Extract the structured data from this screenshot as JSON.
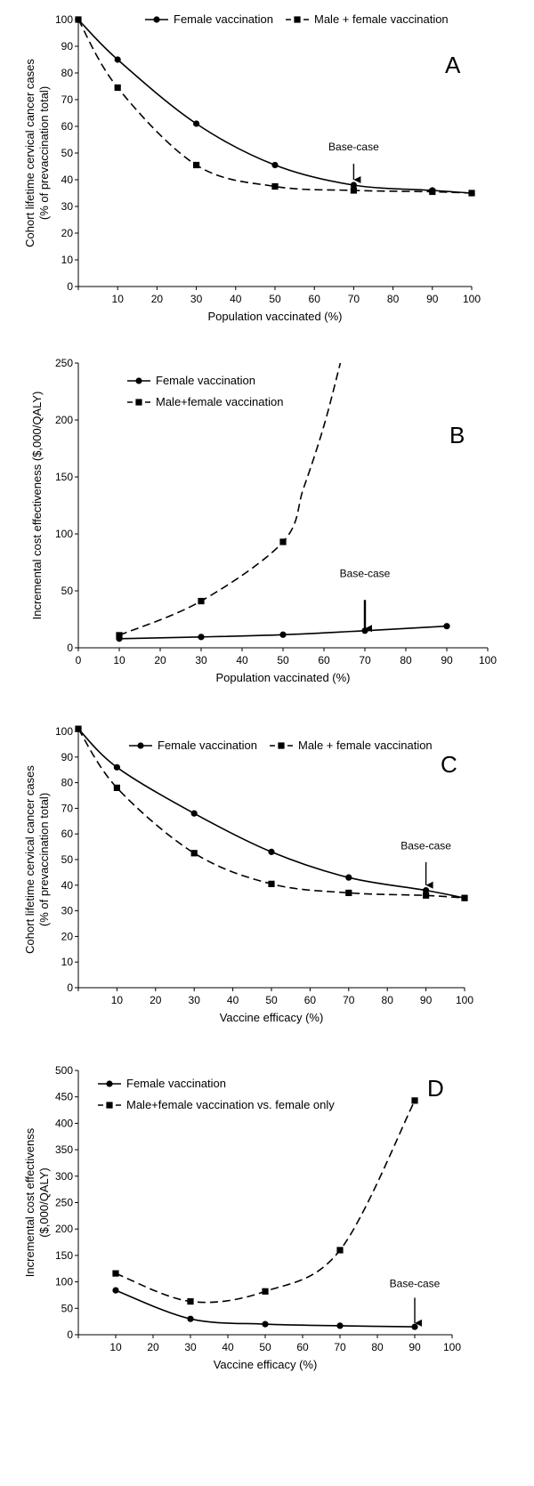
{
  "figure": {
    "background": "#ffffff",
    "line_color": "#000000"
  },
  "chart_data": [
    {
      "id": "A",
      "type": "line",
      "panel_label": "A",
      "xlabel": "Population vaccinated (%)",
      "ylabel": [
        "Cohort lifetime cervical cancer cases",
        "(% of prevaccination total)"
      ],
      "xlim": [
        0,
        100
      ],
      "ylim": [
        0,
        100
      ],
      "xticks": [
        0,
        10,
        20,
        30,
        40,
        50,
        60,
        70,
        80,
        90,
        100
      ],
      "xtick_labels": [
        "",
        "10",
        "20",
        "30",
        "40",
        "50",
        "60",
        "70",
        "80",
        "90",
        "100"
      ],
      "yticks": [
        0,
        10,
        20,
        30,
        40,
        50,
        60,
        70,
        80,
        90,
        100
      ],
      "ytick_labels": [
        "0",
        "10",
        "20",
        "30",
        "40",
        "50",
        "60",
        "70",
        "80",
        "90",
        "100"
      ],
      "x_origin_label": "0",
      "legend": {
        "placement": "top",
        "layout": "horizontal"
      },
      "series": [
        {
          "name": "Female vaccination",
          "marker": "circle",
          "style": "solid",
          "x": [
            0,
            10,
            30,
            50,
            70,
            90,
            100
          ],
          "y": [
            100,
            85,
            61,
            45.5,
            38,
            36,
            35
          ]
        },
        {
          "name": "Male + female vaccination",
          "marker": "square",
          "style": "dashed",
          "x": [
            0,
            10,
            30,
            50,
            70,
            90,
            100
          ],
          "y": [
            100,
            74.5,
            45.5,
            37.5,
            36,
            35.5,
            35
          ]
        }
      ],
      "annotation": {
        "text": "Base-case",
        "x": 70,
        "y_arrow_tip": 40,
        "y_arrow_tail": 46,
        "y_text": 51
      }
    },
    {
      "id": "B",
      "type": "line",
      "panel_label": "B",
      "xlabel": "Population vaccinated (%)",
      "ylabel": [
        "Incremental cost effectiveness ($,000/QALY)"
      ],
      "xlim": [
        0,
        100
      ],
      "ylim": [
        0,
        250
      ],
      "xticks": [
        0,
        10,
        20,
        30,
        40,
        50,
        60,
        70,
        80,
        90,
        100
      ],
      "xtick_labels": [
        "0",
        "10",
        "20",
        "30",
        "40",
        "50",
        "60",
        "70",
        "80",
        "90",
        "100"
      ],
      "yticks": [
        0,
        50,
        100,
        150,
        200,
        250
      ],
      "ytick_labels": [
        "0",
        "50",
        "100",
        "150",
        "200",
        "250"
      ],
      "legend": {
        "placement": "top-left",
        "layout": "vertical"
      },
      "series": [
        {
          "name": "Female vaccination",
          "marker": "circle",
          "style": "solid",
          "x": [
            10,
            30,
            50,
            70,
            90
          ],
          "y": [
            8,
            9.5,
            11.5,
            15,
            19
          ]
        },
        {
          "name": "Male+female vaccination",
          "marker": "square",
          "style": "dashed",
          "x": [
            10,
            30,
            50
          ],
          "y": [
            11,
            41,
            93
          ],
          "curve_continuation": [
            [
              55,
              140
            ],
            [
              60,
              195
            ],
            [
              64,
              250
            ]
          ]
        }
      ],
      "annotation": {
        "text": "Base-case",
        "x": 70,
        "y_arrow_tip": 17,
        "y_arrow_tail": 42,
        "y_text": 62
      }
    },
    {
      "id": "C",
      "type": "line",
      "panel_label": "C",
      "xlabel": "Vaccine efficacy (%)",
      "ylabel": [
        "Cohort lifetime cervical cancer cases",
        "(% of prevaccination total)"
      ],
      "xlim": [
        0,
        100
      ],
      "ylim": [
        0,
        100
      ],
      "xticks": [
        0,
        10,
        20,
        30,
        40,
        50,
        60,
        70,
        80,
        90,
        100
      ],
      "xtick_labels": [
        "",
        "10",
        "20",
        "30",
        "40",
        "50",
        "60",
        "70",
        "80",
        "90",
        "100"
      ],
      "yticks": [
        0,
        10,
        20,
        30,
        40,
        50,
        60,
        70,
        80,
        90,
        100
      ],
      "ytick_labels": [
        "0",
        "10",
        "20",
        "30",
        "40",
        "50",
        "60",
        "70",
        "80",
        "90",
        "100"
      ],
      "legend": {
        "placement": "top",
        "layout": "horizontal"
      },
      "series": [
        {
          "name": "Female vaccination",
          "marker": "circle",
          "style": "solid",
          "x": [
            0,
            10,
            30,
            50,
            70,
            90,
            100
          ],
          "y": [
            101,
            86,
            68,
            53,
            43,
            38,
            35
          ]
        },
        {
          "name": "Male + female vaccination",
          "marker": "square",
          "style": "dashed",
          "x": [
            0,
            10,
            30,
            50,
            70,
            90,
            100
          ],
          "y": [
            101,
            78,
            52.5,
            40.5,
            37,
            36,
            35
          ]
        }
      ],
      "annotation": {
        "text": "Base-case",
        "x": 90,
        "y_arrow_tip": 40,
        "y_arrow_tail": 49,
        "y_text": 54
      }
    },
    {
      "id": "D",
      "type": "line",
      "panel_label": "D",
      "xlabel": "Vaccine efficacy (%)",
      "ylabel": [
        "Incremental cost effectivenss",
        "($,000/QALY)"
      ],
      "xlim": [
        0,
        100
      ],
      "ylim": [
        0,
        500
      ],
      "xticks": [
        0,
        10,
        20,
        30,
        40,
        50,
        60,
        70,
        80,
        90,
        100
      ],
      "xtick_labels": [
        "",
        "10",
        "20",
        "30",
        "40",
        "50",
        "60",
        "70",
        "80",
        "90",
        "100"
      ],
      "yticks": [
        0,
        50,
        100,
        150,
        200,
        250,
        300,
        350,
        400,
        450,
        500
      ],
      "ytick_labels": [
        "0",
        "50",
        "100",
        "150",
        "200",
        "250",
        "300",
        "350",
        "400",
        "450",
        "500"
      ],
      "legend": {
        "placement": "top-left",
        "layout": "vertical"
      },
      "series": [
        {
          "name": "Female vaccination",
          "marker": "circle",
          "style": "solid",
          "x": [
            10,
            30,
            50,
            70,
            90
          ],
          "y": [
            84,
            30,
            20,
            17,
            15
          ]
        },
        {
          "name": "Male+female vaccination vs. female only",
          "marker": "square",
          "style": "dashed",
          "x": [
            10,
            30,
            50,
            70,
            90
          ],
          "y": [
            116,
            63,
            82,
            160,
            443
          ]
        }
      ],
      "annotation": {
        "text": "Base-case",
        "x": 90,
        "y_arrow_tip": 22,
        "y_arrow_tail": 70,
        "y_text": 90
      }
    }
  ]
}
